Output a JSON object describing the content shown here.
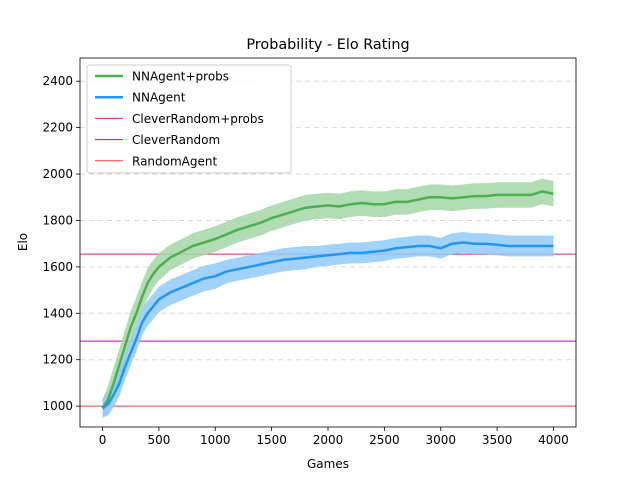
{
  "chart_data": {
    "type": "line",
    "title": "Probability - Elo Rating",
    "xlabel": "Games",
    "ylabel": "Elo",
    "xlim": [
      -200,
      4200
    ],
    "ylim": [
      910,
      2500
    ],
    "xticks": [
      0,
      500,
      1000,
      1500,
      2000,
      2500,
      3000,
      3500,
      4000
    ],
    "yticks": [
      1000,
      1200,
      1400,
      1600,
      1800,
      2000,
      2200,
      2400
    ],
    "grid": "horizontal dashed",
    "legend": "top-left",
    "series": [
      {
        "name": "NNAgent+probs",
        "color": "#4caf50",
        "band_color": "#a5d6a7",
        "x": [
          0,
          50,
          100,
          150,
          200,
          250,
          300,
          350,
          400,
          450,
          500,
          600,
          700,
          800,
          900,
          1000,
          1100,
          1200,
          1300,
          1400,
          1500,
          1600,
          1700,
          1800,
          1900,
          2000,
          2100,
          2200,
          2300,
          2400,
          2500,
          2600,
          2700,
          2800,
          2900,
          3000,
          3100,
          3200,
          3300,
          3400,
          3500,
          3600,
          3700,
          3800,
          3900,
          4000
        ],
        "y": [
          990,
          1030,
          1100,
          1180,
          1260,
          1340,
          1400,
          1470,
          1530,
          1570,
          1600,
          1640,
          1665,
          1690,
          1705,
          1720,
          1740,
          1760,
          1775,
          1790,
          1810,
          1825,
          1840,
          1855,
          1860,
          1865,
          1860,
          1870,
          1875,
          1870,
          1870,
          1880,
          1880,
          1890,
          1900,
          1900,
          1895,
          1900,
          1905,
          1905,
          1910,
          1910,
          1910,
          1910,
          1925,
          1915
        ],
        "spread": [
          40,
          60,
          70,
          70,
          70,
          70,
          70,
          65,
          65,
          60,
          60,
          55,
          55,
          55,
          55,
          55,
          55,
          55,
          55,
          55,
          55,
          55,
          55,
          55,
          55,
          55,
          55,
          55,
          55,
          55,
          55,
          55,
          55,
          55,
          55,
          55,
          55,
          55,
          55,
          55,
          55,
          55,
          55,
          55,
          55,
          55
        ]
      },
      {
        "name": "NNAgent",
        "color": "#2196f3",
        "band_color": "#90caf9",
        "x": [
          0,
          50,
          100,
          150,
          200,
          250,
          300,
          350,
          400,
          450,
          500,
          600,
          700,
          800,
          900,
          1000,
          1100,
          1200,
          1300,
          1400,
          1500,
          1600,
          1700,
          1800,
          1900,
          2000,
          2100,
          2200,
          2300,
          2400,
          2500,
          2600,
          2700,
          2800,
          2900,
          3000,
          3100,
          3200,
          3300,
          3400,
          3500,
          3600,
          3700,
          3800,
          3900,
          4000
        ],
        "y": [
          990,
          1010,
          1050,
          1100,
          1170,
          1230,
          1290,
          1360,
          1400,
          1430,
          1460,
          1490,
          1510,
          1530,
          1550,
          1560,
          1580,
          1590,
          1600,
          1610,
          1620,
          1630,
          1635,
          1640,
          1645,
          1650,
          1655,
          1660,
          1660,
          1665,
          1670,
          1680,
          1685,
          1690,
          1690,
          1680,
          1700,
          1705,
          1700,
          1700,
          1695,
          1690,
          1690,
          1690,
          1690,
          1690
        ],
        "spread": [
          40,
          50,
          55,
          55,
          55,
          55,
          55,
          55,
          55,
          55,
          55,
          55,
          55,
          55,
          55,
          55,
          50,
          50,
          50,
          50,
          50,
          50,
          50,
          50,
          45,
          45,
          45,
          45,
          45,
          45,
          45,
          45,
          45,
          45,
          45,
          45,
          45,
          45,
          45,
          45,
          45,
          45,
          45,
          45,
          45,
          45
        ]
      }
    ],
    "reference_lines": [
      {
        "name": "CleverRandom+probs",
        "color": "#e91e63",
        "y": 1655
      },
      {
        "name": "CleverRandom",
        "color": "#c000c0",
        "y": 1280
      },
      {
        "name": "RandomAgent",
        "color": "#f44336",
        "y": 1000
      }
    ]
  }
}
